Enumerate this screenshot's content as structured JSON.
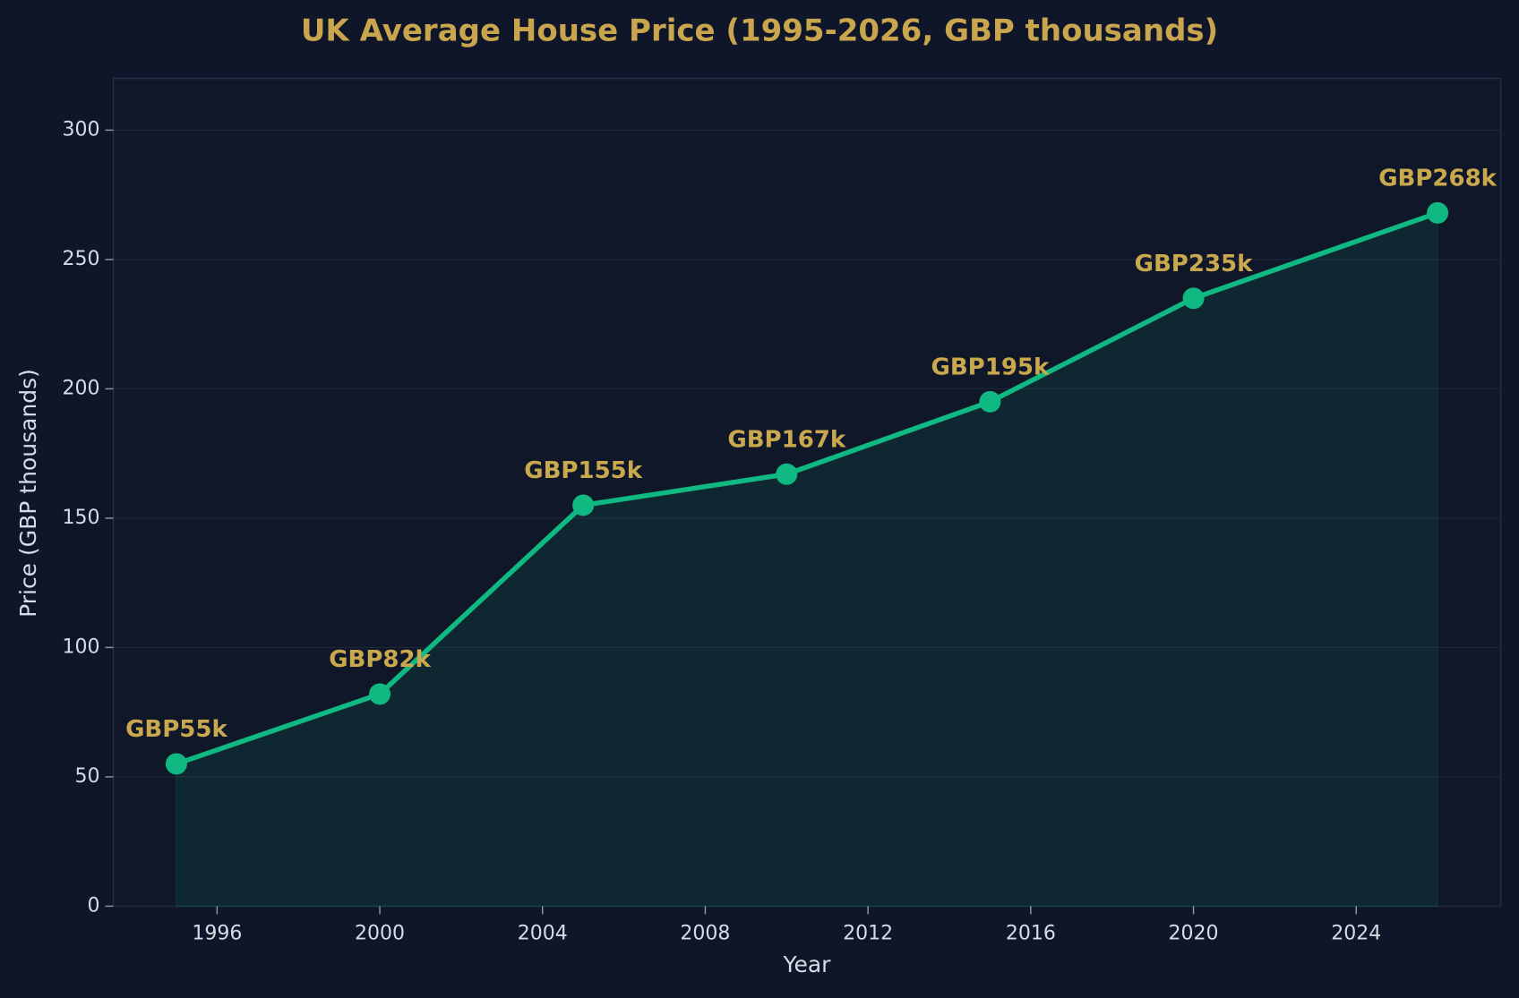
{
  "chart_data": {
    "type": "area-line",
    "title": "UK Average House Price (1995-2026, GBP thousands)",
    "x_label": "Year",
    "y_label": "Price (GBP thousands)",
    "x": [
      1995,
      2000,
      2005,
      2010,
      2015,
      2020,
      2026
    ],
    "series": [
      {
        "name": "UK Average House Price",
        "color": "#10b981",
        "values": [
          55,
          82,
          155,
          167,
          195,
          235,
          268
        ],
        "value_labels": [
          "GBP55k",
          "GBP82k",
          "GBP155k",
          "GBP167k",
          "GBP195k",
          "GBP235k",
          "GBP268k"
        ]
      }
    ],
    "xlim": [
      1993.45,
      2027.55
    ],
    "xticks": [
      1996,
      2000,
      2004,
      2008,
      2012,
      2016,
      2020,
      2024
    ],
    "ylim": [
      0,
      320
    ],
    "yticks": [
      0,
      50,
      100,
      150,
      200,
      250,
      300
    ],
    "grid": true
  }
}
